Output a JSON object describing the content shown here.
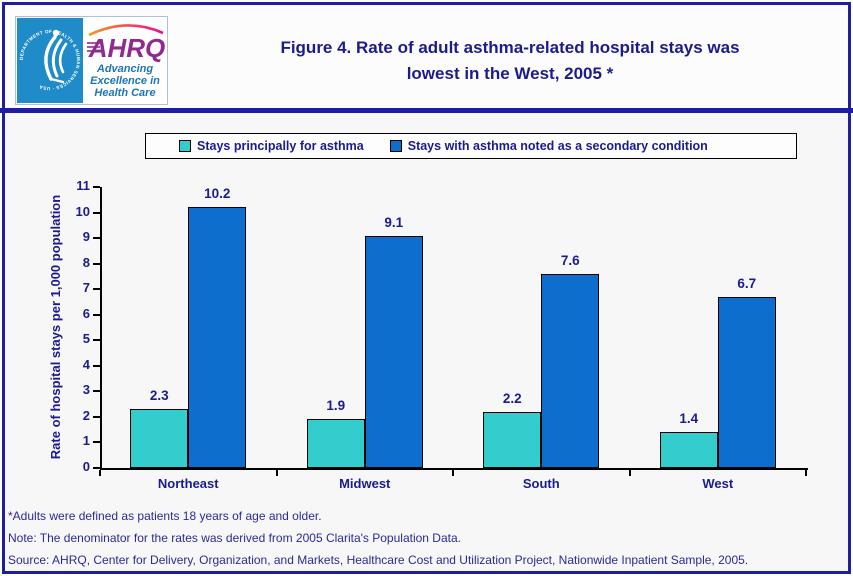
{
  "header": {
    "logo": {
      "seal_text": "DEPARTMENT OF HEALTH & HUMAN SERVICES · USA",
      "brand": "AHRQ",
      "tagline_lines": [
        "Advancing",
        "Excellence in",
        "Health Care"
      ]
    },
    "title_line1": "Figure 4. Rate of adult asthma-related hospital stays was",
    "title_line2": "lowest in the West, 2005 *"
  },
  "chart_data": {
    "type": "bar",
    "title": "Figure 4. Rate of adult asthma-related hospital stays was lowest in the West, 2005 *",
    "categories": [
      "Northeast",
      "Midwest",
      "South",
      "West"
    ],
    "series": [
      {
        "name": "Stays principally for asthma",
        "color": "#33cdcd",
        "values": [
          2.3,
          1.9,
          2.2,
          1.4
        ]
      },
      {
        "name": "Stays with asthma noted as a secondary condition",
        "color": "#0d6ecd",
        "values": [
          10.2,
          9.1,
          7.6,
          6.7
        ]
      }
    ],
    "xlabel": "",
    "ylabel": "Rate of hospital stays per 1,000 population",
    "ylim": [
      0,
      11
    ],
    "ytick_step": 1,
    "grid": false,
    "legend_position": "top",
    "value_labels_decimals": 1
  },
  "footnotes": [
    "*Adults were defined as patients 18 years of age and older.",
    "Note: The denominator for the rates was derived from 2005 Clarita's Population Data.",
    "Source: AHRQ, Center for Delivery, Organization, and Markets, Healthcare Cost and Utilization Project, Nationwide Inpatient Sample, 2005."
  ],
  "colors": {
    "navy_text": "#1b1b8e",
    "frame_navy": "#1e1e9e",
    "axis_black": "#000000",
    "hhs_blue": "#1f8bc8",
    "ahrq_purple": "#912a90",
    "tagline_blue": "#1b75bc",
    "arc_orange": "#f7941e",
    "arc_pink": "#ec0c8c",
    "chart_bg": "#f7f7f7"
  }
}
